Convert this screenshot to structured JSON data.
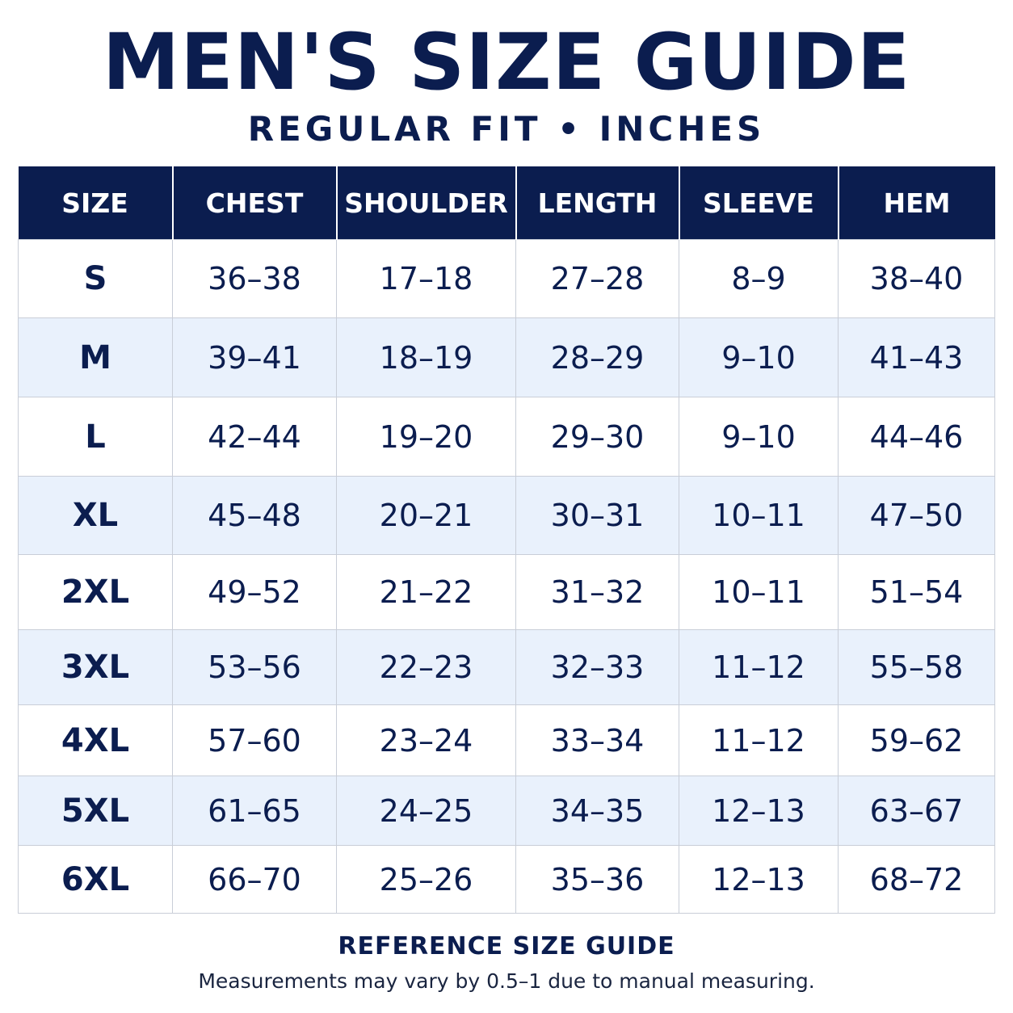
{
  "title": "MEN'S SIZE GUIDE",
  "subtitle": "REGULAR FIT • INCHES",
  "table": {
    "headers": [
      "SIZE",
      "CHEST",
      "SHOULDER",
      "LENGTH",
      "SLEEVE",
      "HEM"
    ],
    "rows": [
      [
        "S",
        "36–38",
        "17–18",
        "27–28",
        "8–9",
        "38–40"
      ],
      [
        "M",
        "39–41",
        "18–19",
        "28–29",
        "9–10",
        "41–43"
      ],
      [
        "L",
        "42–44",
        "19–20",
        "29–30",
        "9–10",
        "44–46"
      ],
      [
        "XL",
        "45–48",
        "20–21",
        "30–31",
        "10–11",
        "47–50"
      ],
      [
        "2XL",
        "49–52",
        "21–22",
        "31–32",
        "10–11",
        "51–54"
      ],
      [
        "3XL",
        "53–56",
        "22–23",
        "32–33",
        "11–12",
        "55–58"
      ],
      [
        "4XL",
        "57–60",
        "23–24",
        "33–34",
        "11–12",
        "59–62"
      ],
      [
        "5XL",
        "61–65",
        "24–25",
        "34–35",
        "12–13",
        "63–67"
      ],
      [
        "6XL",
        "66–70",
        "25–26",
        "35–36",
        "12–13",
        "68–72"
      ]
    ]
  },
  "footer": {
    "title": "REFERENCE SIZE GUIDE",
    "note": "Measurements may vary by 0.5–1 due to manual measuring."
  },
  "colors": {
    "navy": "#0b1d4f",
    "stripe": "#e9f1fc",
    "grid": "#c9ced8"
  }
}
